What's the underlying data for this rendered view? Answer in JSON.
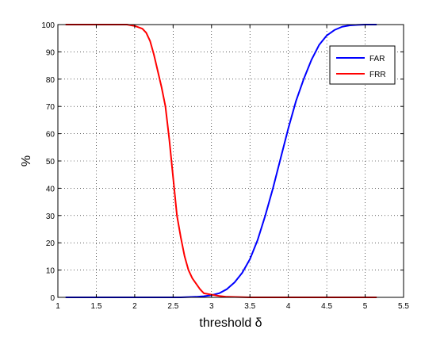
{
  "chart_data": {
    "type": "line",
    "title": "",
    "xlabel": "threshold δ",
    "ylabel": "%",
    "xlim": [
      1,
      5.5
    ],
    "ylim": [
      0,
      100
    ],
    "xticks": [
      1,
      1.5,
      2,
      2.5,
      3,
      3.5,
      4,
      4.5,
      5,
      5.5
    ],
    "yticks": [
      0,
      10,
      20,
      30,
      40,
      50,
      60,
      70,
      80,
      90,
      100
    ],
    "xtick_labels": [
      "1",
      "1.5",
      "2",
      "2.5",
      "3",
      "3.5",
      "4",
      "4.5",
      "5",
      "5.5"
    ],
    "ytick_labels": [
      "0",
      "10",
      "20",
      "30",
      "40",
      "50",
      "60",
      "70",
      "80",
      "90",
      "100"
    ],
    "grid": true,
    "legend_position": "top-right",
    "series": [
      {
        "name": "FAR",
        "color": "#0000ff",
        "x": [
          1.1,
          2.6,
          2.8,
          2.9,
          3.0,
          3.1,
          3.2,
          3.3,
          3.4,
          3.5,
          3.6,
          3.7,
          3.8,
          3.9,
          4.0,
          4.1,
          4.2,
          4.3,
          4.4,
          4.5,
          4.6,
          4.7,
          4.8,
          4.9,
          5.0,
          5.15
        ],
        "y": [
          0,
          0,
          0.2,
          0.4,
          0.8,
          1.5,
          3,
          5.5,
          9,
          14,
          21,
          30,
          40,
          51,
          62,
          72,
          80,
          87,
          92.5,
          96,
          98,
          99.2,
          99.7,
          99.9,
          100,
          100
        ]
      },
      {
        "name": "FRR",
        "color": "#ff0000",
        "x": [
          1.1,
          1.9,
          2.0,
          2.1,
          2.15,
          2.2,
          2.25,
          2.3,
          2.35,
          2.4,
          2.45,
          2.5,
          2.55,
          2.6,
          2.65,
          2.7,
          2.75,
          2.8,
          2.85,
          2.9,
          3.0,
          3.1,
          3.2,
          3.5,
          4.0,
          4.5,
          5.15
        ],
        "y": [
          100,
          100,
          99.5,
          98.5,
          97,
          94,
          89,
          83,
          77,
          70,
          58,
          44,
          30,
          22,
          15,
          10,
          7,
          5,
          3,
          1.5,
          1,
          0.5,
          0.2,
          0,
          0,
          0,
          0
        ]
      }
    ]
  }
}
